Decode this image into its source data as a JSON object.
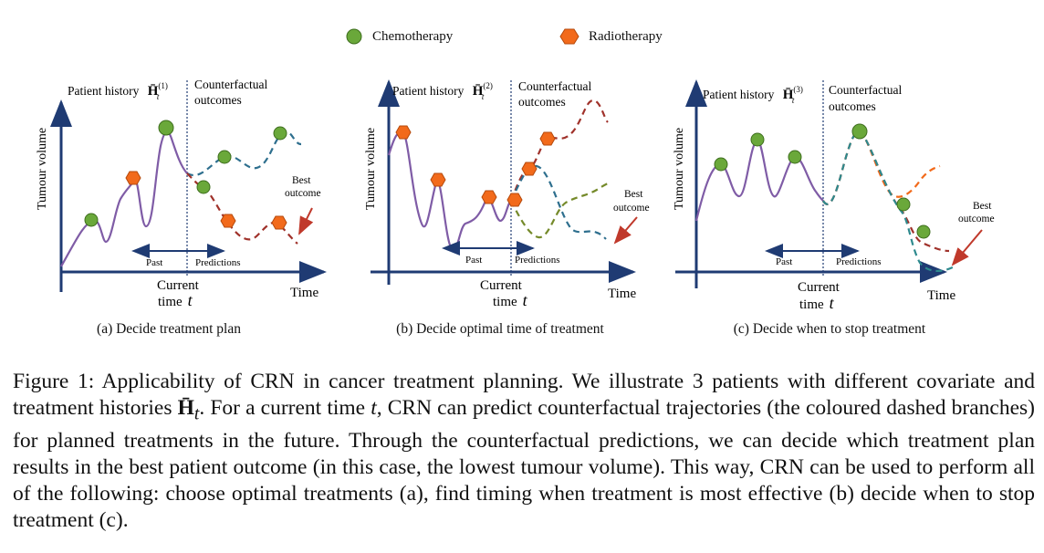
{
  "legend": {
    "chemo_label": "Chemotherapy",
    "radio_label": "Radiotherapy",
    "chemo_color": "#6aa83a",
    "radio_color": "#f26a1b"
  },
  "panels": [
    {
      "history_label": "Patient history",
      "history_symbol": "H̄",
      "history_sup": "(1)",
      "history_sub": "t",
      "cf_label_1": "Counterfactual",
      "cf_label_2": "outcomes",
      "ylabel": "Tumour volume",
      "xlabel": "Time",
      "current_1": "Current",
      "current_2": "time",
      "current_t": "t",
      "past_label": "Past",
      "pred_label": "Predictions",
      "best_1": "Best",
      "best_2": "outcome",
      "subcaption": "(a) Decide treatment plan"
    },
    {
      "history_label": "Patient history",
      "history_symbol": "H̄",
      "history_sup": "(2)",
      "history_sub": "t",
      "cf_label_1": "Counterfactual",
      "cf_label_2": "outcomes",
      "ylabel": "Tumour volume",
      "xlabel": "Time",
      "current_1": "Current",
      "current_2": "time",
      "current_t": "t",
      "past_label": "Past",
      "pred_label": "Predictions",
      "best_1": "Best",
      "best_2": "outcome",
      "subcaption": "(b) Decide optimal time of treatment"
    },
    {
      "history_label": "Patient history",
      "history_symbol": "H̄",
      "history_sup": "(3)",
      "history_sub": "t",
      "cf_label_1": "Counterfactual",
      "cf_label_2": "outcomes",
      "ylabel": "Tumour volume",
      "xlabel": "Time",
      "current_1": "Current",
      "current_2": "time",
      "current_t": "t",
      "past_label": "Past",
      "pred_label": "Predictions",
      "best_1": "Best",
      "best_2": "outcome",
      "subcaption": "(c) Decide when to stop treatment"
    }
  ],
  "caption": {
    "p1": "Figure 1: Applicability of CRN in cancer treatment planning. We illustrate 3 patients with different covariate and treatment histories ",
    "sym": "H̄",
    "sym_sub": "t",
    "p2": ". For a current time ",
    "t": "t",
    "p3": ", CRN can predict counterfactual trajectories (the coloured dashed branches) for planned treatments in the future. Through the counterfactual predictions, we can decide which treatment plan results in the best patient outcome (in this case, the lowest tumour volume). This way, CRN can be used to perform all of the following: choose optimal treatments (a), find timing when treatment is most effective (b) decide when to stop treatment (c)."
  }
}
